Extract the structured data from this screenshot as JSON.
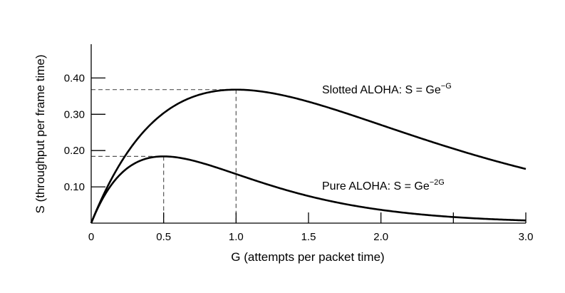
{
  "chart_data": {
    "type": "line",
    "title": "",
    "xlabel": "G (attempts per packet time)",
    "ylabel": "S (throughput per frame time)",
    "xlim": [
      0,
      3.0
    ],
    "ylim": [
      0,
      0.5
    ],
    "x_ticks": [
      {
        "value": 0,
        "label": "0"
      },
      {
        "value": 0.5,
        "label": "0.5"
      },
      {
        "value": 1.0,
        "label": "1.0"
      },
      {
        "value": 1.5,
        "label": "1.5"
      },
      {
        "value": 2.0,
        "label": "2.0"
      },
      {
        "value": 3.0,
        "label": "3.0"
      }
    ],
    "x_minor_ticks": [
      2.5
    ],
    "y_ticks": [
      {
        "value": 0.1,
        "label": "0.10"
      },
      {
        "value": 0.2,
        "label": "0.20"
      },
      {
        "value": 0.3,
        "label": "0.30"
      },
      {
        "value": 0.4,
        "label": "0.40"
      }
    ],
    "grid": false,
    "series": [
      {
        "key": "slotted",
        "annotation_main": "Slotted ALOHA: S = Ge",
        "annotation_sup": "−G",
        "x": [
          0,
          0.1,
          0.2,
          0.3,
          0.4,
          0.5,
          0.6,
          0.7,
          0.8,
          0.9,
          1.0,
          1.2,
          1.4,
          1.6,
          1.8,
          2.0,
          2.2,
          2.4,
          2.6,
          2.8,
          3.0
        ],
        "values": [
          0,
          0.09,
          0.164,
          0.222,
          0.268,
          0.303,
          0.329,
          0.348,
          0.359,
          0.366,
          0.368,
          0.361,
          0.345,
          0.323,
          0.298,
          0.271,
          0.244,
          0.218,
          0.193,
          0.171,
          0.149
        ],
        "peak": {
          "x": 1.0,
          "y": 0.368
        }
      },
      {
        "key": "pure",
        "annotation_main": "Pure ALOHA: S = Ge",
        "annotation_sup": "−2G",
        "x": [
          0,
          0.1,
          0.2,
          0.3,
          0.4,
          0.5,
          0.6,
          0.7,
          0.8,
          0.9,
          1.0,
          1.2,
          1.4,
          1.6,
          1.8,
          2.0,
          2.2,
          2.4,
          2.6,
          2.8,
          3.0
        ],
        "values": [
          0,
          0.082,
          0.134,
          0.165,
          0.18,
          0.184,
          0.181,
          0.173,
          0.162,
          0.149,
          0.135,
          0.109,
          0.085,
          0.065,
          0.049,
          0.037,
          0.027,
          0.02,
          0.014,
          0.01,
          0.007
        ],
        "peak": {
          "x": 0.5,
          "y": 0.184
        }
      }
    ],
    "colors": {
      "curve": "#000000",
      "axis": "#000000",
      "reference_line": "#555555"
    }
  }
}
